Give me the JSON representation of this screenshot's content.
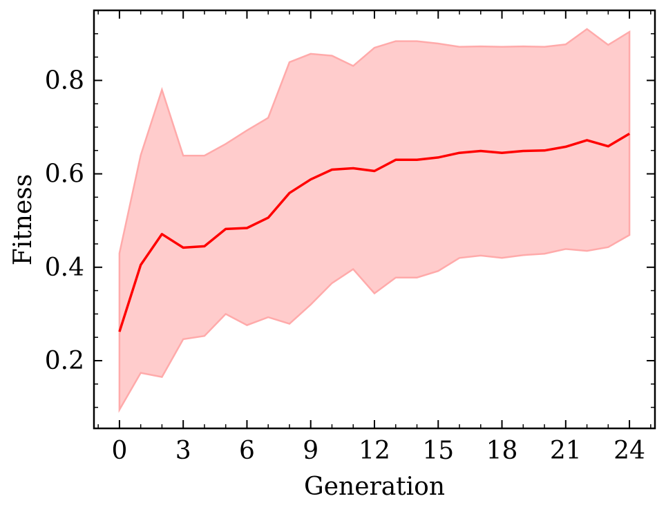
{
  "chart_data": {
    "type": "line",
    "xlabel": "Generation",
    "ylabel": "Fitness",
    "xlim": [
      -1.2,
      25.2
    ],
    "ylim": [
      0.055,
      0.95
    ],
    "x_ticks": [
      0,
      3,
      6,
      9,
      12,
      15,
      18,
      21,
      24
    ],
    "x_tick_labels": [
      "0",
      "3",
      "6",
      "9",
      "12",
      "15",
      "18",
      "21",
      "24"
    ],
    "y_ticks": [
      0.2,
      0.4,
      0.6,
      0.8
    ],
    "y_tick_labels": [
      "0.2",
      "0.4",
      "0.6",
      "0.8"
    ],
    "grid": false,
    "legend": false,
    "colors": {
      "line": "#ff0000",
      "band_fill": "#ffcccc",
      "band_edge": "#ffaaaa"
    },
    "x": [
      0,
      1,
      2,
      3,
      4,
      5,
      6,
      7,
      8,
      9,
      10,
      11,
      12,
      13,
      14,
      15,
      16,
      17,
      18,
      19,
      20,
      21,
      22,
      23,
      24
    ],
    "series": [
      {
        "values": [
          0.262,
          0.405,
          0.471,
          0.442,
          0.445,
          0.482,
          0.484,
          0.506,
          0.559,
          0.588,
          0.609,
          0.612,
          0.606,
          0.63,
          0.63,
          0.635,
          0.645,
          0.649,
          0.645,
          0.649,
          0.65,
          0.658,
          0.672,
          0.659,
          0.686
        ]
      }
    ],
    "band": {
      "lower": [
        0.095,
        0.174,
        0.165,
        0.246,
        0.253,
        0.3,
        0.276,
        0.293,
        0.279,
        0.32,
        0.366,
        0.396,
        0.344,
        0.378,
        0.378,
        0.392,
        0.42,
        0.425,
        0.42,
        0.426,
        0.429,
        0.439,
        0.435,
        0.443,
        0.469
      ],
      "upper": [
        0.43,
        0.64,
        0.78,
        0.639,
        0.639,
        0.664,
        0.693,
        0.72,
        0.839,
        0.857,
        0.853,
        0.831,
        0.87,
        0.884,
        0.884,
        0.879,
        0.872,
        0.873,
        0.872,
        0.873,
        0.872,
        0.877,
        0.91,
        0.876,
        0.904
      ]
    }
  }
}
